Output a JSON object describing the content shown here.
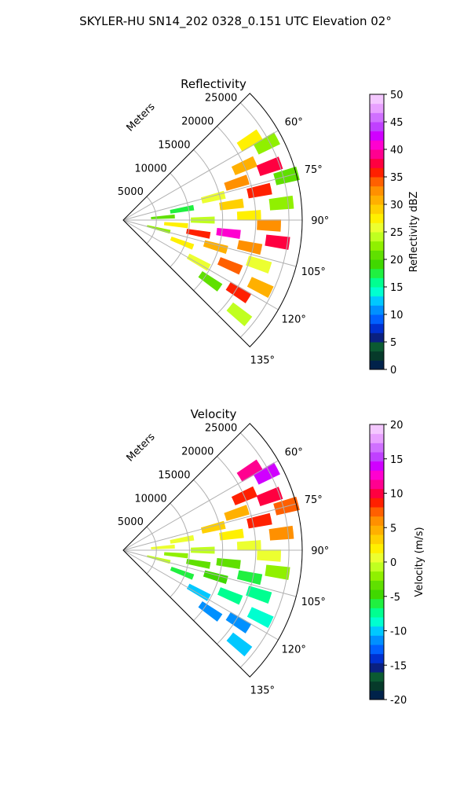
{
  "figure_title": "SKYLER-HU  SN14_202  0328_0.151 UTC Elevation 02°",
  "chart_data": [
    {
      "type": "ppi-sector",
      "title": "Reflectivity",
      "range_label": "Meters",
      "range_ticks": [
        5000,
        10000,
        15000,
        20000,
        25000
      ],
      "range_max": 27000,
      "azimuth_range": [
        45,
        135
      ],
      "azimuth_ticks": [
        "60°",
        "75°",
        "90°",
        "105°",
        "120°",
        "135°"
      ],
      "azimuth_tick_values": [
        60,
        75,
        90,
        105,
        120,
        135
      ],
      "grid": true,
      "colorbar": {
        "label": "Reflectivity dBZ",
        "min": 0,
        "max": 50,
        "ticks": [
          0,
          5,
          10,
          15,
          20,
          25,
          30,
          35,
          40,
          45,
          50
        ],
        "colors": [
          "#00224a",
          "#063a2a",
          "#0b5a32",
          "#0a2080",
          "#0030d0",
          "#0060ff",
          "#0090ff",
          "#00c8ff",
          "#00ffd0",
          "#00ff90",
          "#20f040",
          "#40d800",
          "#60e000",
          "#90f000",
          "#c0ff20",
          "#ecff30",
          "#fff000",
          "#ffd000",
          "#ffb000",
          "#ff9000",
          "#ff6000",
          "#ff2000",
          "#ff0040",
          "#ff0090",
          "#ff00d0",
          "#d000ff",
          "#c040ff",
          "#d070ff",
          "#e8a0ff",
          "#f4c8ff"
        ]
      },
      "echo_cells": [
        {
          "az": 58,
          "r": 22500,
          "val": 28
        },
        {
          "az": 62,
          "r": 24500,
          "val": 22
        },
        {
          "az": 66,
          "r": 20000,
          "val": 31
        },
        {
          "az": 70,
          "r": 23500,
          "val": 38
        },
        {
          "az": 72,
          "r": 18000,
          "val": 33
        },
        {
          "az": 75,
          "r": 25500,
          "val": 21
        },
        {
          "az": 76,
          "r": 14000,
          "val": 26
        },
        {
          "az": 78,
          "r": 21000,
          "val": 36
        },
        {
          "az": 80,
          "r": 9000,
          "val": 18
        },
        {
          "az": 82,
          "r": 16500,
          "val": 29
        },
        {
          "az": 84,
          "r": 24000,
          "val": 22
        },
        {
          "az": 86,
          "r": 6000,
          "val": 20
        },
        {
          "az": 88,
          "r": 19000,
          "val": 27
        },
        {
          "az": 90,
          "r": 12000,
          "val": 24
        },
        {
          "az": 92,
          "r": 22000,
          "val": 33
        },
        {
          "az": 95,
          "r": 8000,
          "val": 27
        },
        {
          "az": 97,
          "r": 16000,
          "val": 40
        },
        {
          "az": 98,
          "r": 23500,
          "val": 37
        },
        {
          "az": 100,
          "r": 11500,
          "val": 35
        },
        {
          "az": 102,
          "r": 19500,
          "val": 32
        },
        {
          "az": 104,
          "r": 5500,
          "val": 22
        },
        {
          "az": 106,
          "r": 14500,
          "val": 30
        },
        {
          "az": 108,
          "r": 21500,
          "val": 26
        },
        {
          "az": 111,
          "r": 9500,
          "val": 28
        },
        {
          "az": 113,
          "r": 17500,
          "val": 34
        },
        {
          "az": 116,
          "r": 23000,
          "val": 30
        },
        {
          "az": 119,
          "r": 13000,
          "val": 25
        },
        {
          "az": 122,
          "r": 20500,
          "val": 36
        },
        {
          "az": 125,
          "r": 16000,
          "val": 21
        },
        {
          "az": 129,
          "r": 22500,
          "val": 24
        }
      ]
    },
    {
      "type": "ppi-sector",
      "title": "Velocity",
      "range_label": "Meters",
      "range_ticks": [
        5000,
        10000,
        15000,
        20000,
        25000
      ],
      "range_max": 27000,
      "azimuth_range": [
        45,
        135
      ],
      "azimuth_ticks": [
        "60°",
        "75°",
        "90°",
        "105°",
        "120°",
        "135°"
      ],
      "azimuth_tick_values": [
        60,
        75,
        90,
        105,
        120,
        135
      ],
      "grid": true,
      "colorbar": {
        "label": "Velocity (m/s)",
        "min": -20,
        "max": 20,
        "ticks": [
          -20,
          -15,
          -10,
          -5,
          0,
          5,
          10,
          15,
          20
        ],
        "colors": [
          "#00224a",
          "#063a2a",
          "#0b5a32",
          "#0a2080",
          "#0030d0",
          "#0060ff",
          "#0090ff",
          "#00c8ff",
          "#00ffd0",
          "#00ff90",
          "#20f040",
          "#40d800",
          "#60e000",
          "#90f000",
          "#c0ff20",
          "#ecff30",
          "#fff000",
          "#ffd000",
          "#ffb000",
          "#ff9000",
          "#ff6000",
          "#ff2000",
          "#ff0040",
          "#ff0090",
          "#ff00d0",
          "#d000ff",
          "#c040ff",
          "#d070ff",
          "#e8a0ff",
          "#f4c8ff"
        ]
      },
      "echo_cells": [
        {
          "az": 58,
          "r": 22500,
          "val": 11
        },
        {
          "az": 62,
          "r": 24500,
          "val": 14
        },
        {
          "az": 66,
          "r": 20000,
          "val": 8
        },
        {
          "az": 70,
          "r": 23500,
          "val": 10
        },
        {
          "az": 72,
          "r": 18000,
          "val": 5
        },
        {
          "az": 75,
          "r": 25500,
          "val": 7
        },
        {
          "az": 76,
          "r": 14000,
          "val": 3
        },
        {
          "az": 78,
          "r": 21000,
          "val": 9
        },
        {
          "az": 80,
          "r": 9000,
          "val": 1
        },
        {
          "az": 82,
          "r": 16500,
          "val": 2
        },
        {
          "az": 84,
          "r": 24000,
          "val": 6
        },
        {
          "az": 86,
          "r": 6000,
          "val": 1
        },
        {
          "az": 88,
          "r": 19000,
          "val": 0
        },
        {
          "az": 90,
          "r": 12000,
          "val": -1
        },
        {
          "az": 92,
          "r": 22000,
          "val": 1
        },
        {
          "az": 95,
          "r": 8000,
          "val": -2
        },
        {
          "az": 97,
          "r": 16000,
          "val": -3
        },
        {
          "az": 98,
          "r": 23500,
          "val": -2
        },
        {
          "az": 100,
          "r": 11500,
          "val": -4
        },
        {
          "az": 102,
          "r": 19500,
          "val": -6
        },
        {
          "az": 104,
          "r": 5500,
          "val": -1
        },
        {
          "az": 106,
          "r": 14500,
          "val": -5
        },
        {
          "az": 108,
          "r": 21500,
          "val": -7
        },
        {
          "az": 111,
          "r": 9500,
          "val": -6
        },
        {
          "az": 113,
          "r": 17500,
          "val": -8
        },
        {
          "az": 116,
          "r": 23000,
          "val": -9
        },
        {
          "az": 119,
          "r": 13000,
          "val": -10
        },
        {
          "az": 122,
          "r": 20500,
          "val": -11
        },
        {
          "az": 125,
          "r": 16000,
          "val": -12
        },
        {
          "az": 129,
          "r": 22500,
          "val": -10
        }
      ]
    }
  ]
}
